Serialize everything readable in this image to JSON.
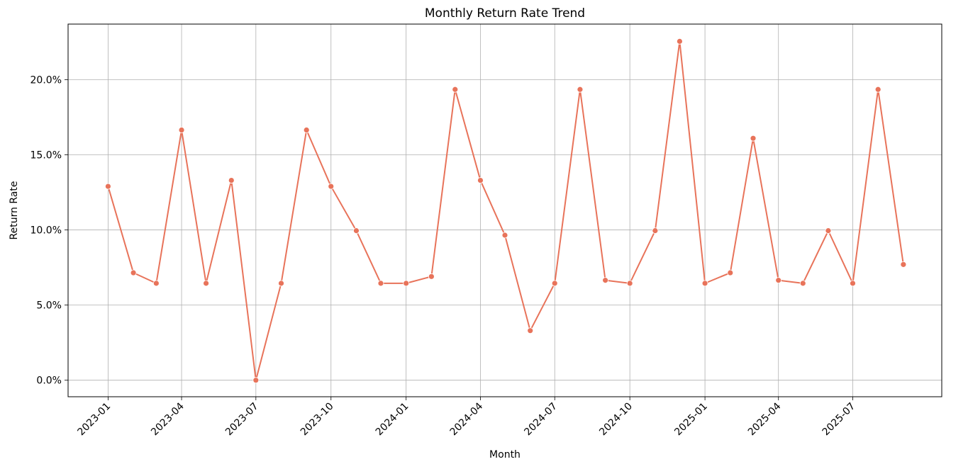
{
  "chart_data": {
    "type": "line",
    "title": "Monthly Return Rate Trend",
    "xlabel": "Month",
    "ylabel": "Return Rate",
    "ylim": [
      -0.011,
      0.237
    ],
    "xlim": [
      "2022-11-13",
      "2025-10-18"
    ],
    "grid": true,
    "color": "#E8735A",
    "yticks": [
      0.0,
      0.05,
      0.1,
      0.15,
      0.2
    ],
    "ytick_labels": [
      "0.0%",
      "5.0%",
      "10.0%",
      "15.0%",
      "20.0%"
    ],
    "xticks": [
      "2023-01-01",
      "2023-04-01",
      "2023-07-01",
      "2023-10-01",
      "2024-01-01",
      "2024-04-01",
      "2024-07-01",
      "2024-10-01",
      "2025-01-01",
      "2025-04-01",
      "2025-07-01"
    ],
    "xtick_labels": [
      "2023-01",
      "2023-04",
      "2023-07",
      "2023-10",
      "2024-01",
      "2024-04",
      "2024-07",
      "2024-10",
      "2025-01",
      "2025-04",
      "2025-07"
    ],
    "x": [
      "2023-01-01",
      "2023-02-01",
      "2023-03-01",
      "2023-04-01",
      "2023-05-01",
      "2023-06-01",
      "2023-07-01",
      "2023-08-01",
      "2023-09-01",
      "2023-10-01",
      "2023-11-01",
      "2023-12-01",
      "2024-01-01",
      "2024-02-01",
      "2024-03-01",
      "2024-04-01",
      "2024-05-01",
      "2024-06-01",
      "2024-07-01",
      "2024-08-01",
      "2024-09-01",
      "2024-10-01",
      "2024-11-01",
      "2024-12-01",
      "2025-01-01",
      "2025-02-01",
      "2025-03-01",
      "2025-04-01",
      "2025-05-01",
      "2025-06-01",
      "2025-07-01",
      "2025-08-01",
      "2025-09-01"
    ],
    "values": [
      0.129,
      0.0715,
      0.0645,
      0.1665,
      0.0645,
      0.133,
      0.0,
      0.0645,
      0.1665,
      0.129,
      0.0995,
      0.0645,
      0.0645,
      0.069,
      0.1935,
      0.133,
      0.0965,
      0.033,
      0.0645,
      0.1935,
      0.0665,
      0.0645,
      0.0995,
      0.2255,
      0.0645,
      0.0715,
      0.161,
      0.0665,
      0.0645,
      0.0995,
      0.0645,
      0.1935,
      0.077
    ]
  }
}
